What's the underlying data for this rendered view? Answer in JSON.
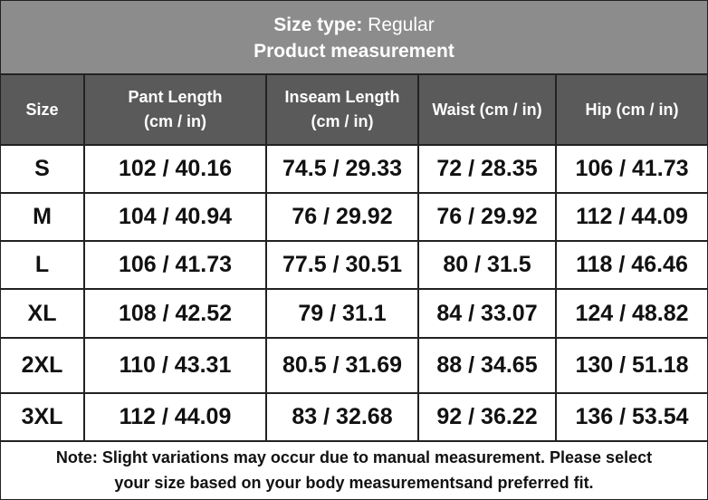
{
  "header": {
    "title_label": "Size type:",
    "title_value": "Regular",
    "subtitle": "Product measurement"
  },
  "table": {
    "columns": [
      [
        "Size"
      ],
      [
        "Pant Length",
        "(cm / in)"
      ],
      [
        "Inseam Length",
        "(cm / in)"
      ],
      [
        "Waist (cm / in)"
      ],
      [
        "Hip (cm / in)"
      ]
    ],
    "rows": [
      [
        "S",
        "102 / 40.16",
        "74.5 / 29.33",
        "72 / 28.35",
        "106 / 41.73"
      ],
      [
        "M",
        "104 / 40.94",
        "76 / 29.92",
        "76 / 29.92",
        "112 / 44.09"
      ],
      [
        "L",
        "106 / 41.73",
        "77.5 / 30.51",
        "80 / 31.5",
        "118 / 46.46"
      ],
      [
        "XL",
        "108 / 42.52",
        "79 / 31.1",
        "84 / 33.07",
        "124 / 48.82"
      ],
      [
        "2XL",
        "110 / 43.31",
        "80.5 / 31.69",
        "88 / 34.65",
        "130 / 51.18"
      ],
      [
        "3XL",
        "112 / 44.09",
        "83 / 32.68",
        "92 / 36.22",
        "136 / 53.54"
      ]
    ]
  },
  "note": [
    "Note: Slight variations may occur due to manual measurement. Please select",
    "your size based on your body measurementsand preferred fit."
  ]
}
